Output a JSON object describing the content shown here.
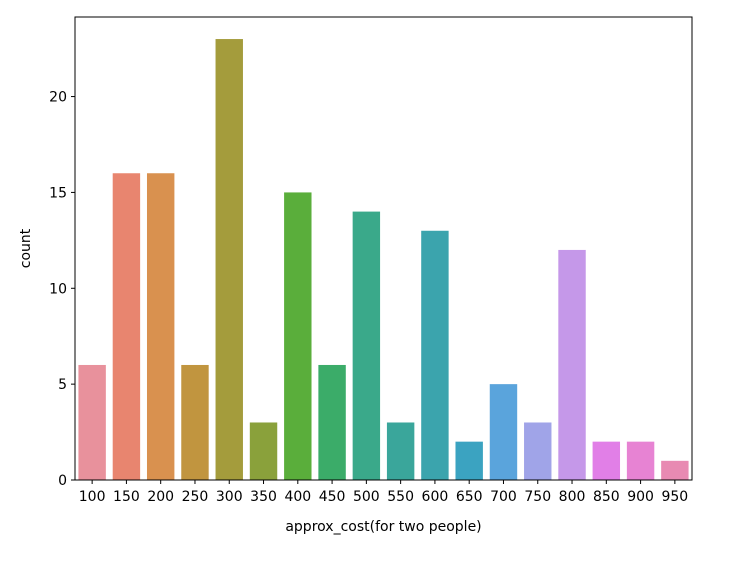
{
  "chart_data": {
    "type": "bar",
    "xlabel": "approx_cost(for two people)",
    "ylabel": "count",
    "categories": [
      "100",
      "150",
      "200",
      "250",
      "300",
      "350",
      "400",
      "450",
      "500",
      "550",
      "600",
      "650",
      "700",
      "750",
      "800",
      "850",
      "900",
      "950"
    ],
    "values": [
      6,
      16,
      16,
      6,
      23,
      3,
      15,
      6,
      14,
      3,
      13,
      2,
      5,
      3,
      12,
      2,
      2,
      1
    ],
    "colors": [
      "#e8919c",
      "#e8856f",
      "#d9914f",
      "#c1953f",
      "#a49c3c",
      "#8aa13b",
      "#5aae3b",
      "#3bac69",
      "#3aa98a",
      "#3aa69b",
      "#3ba4ad",
      "#3ba3c1",
      "#5aa4dc",
      "#a0a4e8",
      "#c598e9",
      "#e17fe7",
      "#e783d3",
      "#e88ab2"
    ],
    "yticks": [
      0,
      5,
      10,
      15,
      20
    ],
    "ylim": [
      0,
      24.15
    ],
    "grid": false
  }
}
